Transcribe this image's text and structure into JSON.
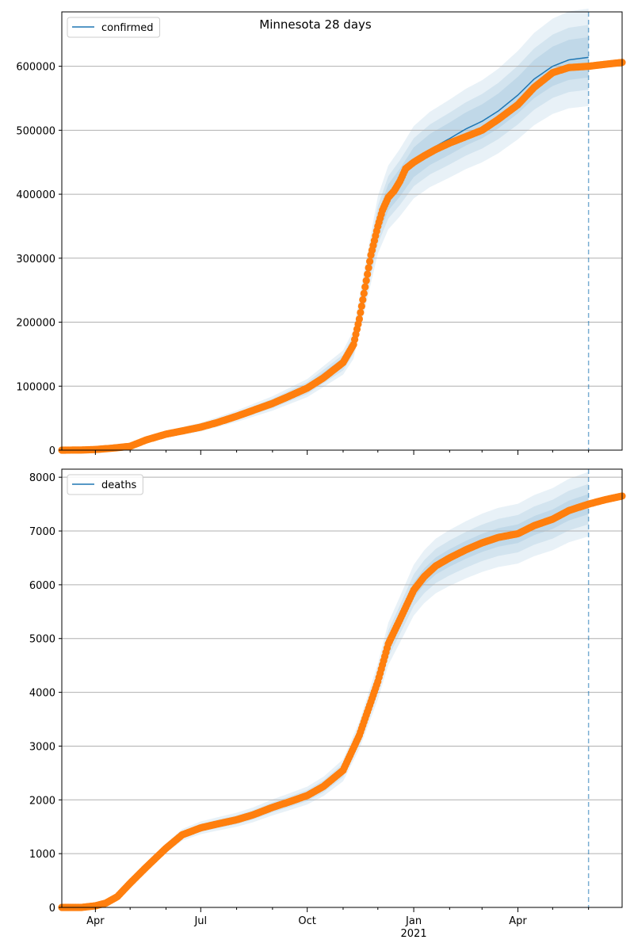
{
  "figure": {
    "title": "Minnesota 28 days"
  },
  "x_axis": {
    "tick_labels": [
      "Apr",
      "Jul",
      "Oct",
      "Jan",
      "Apr"
    ],
    "tick_dates": [
      "2020-04-01",
      "2020-07-01",
      "2020-10-01",
      "2021-01-01",
      "2021-04-01"
    ],
    "year_label": "2021",
    "minor_tick_dates": [
      "2020-05-01",
      "2020-06-01",
      "2020-08-01",
      "2020-09-01",
      "2020-11-01",
      "2020-12-01",
      "2021-02-01",
      "2021-03-01",
      "2021-05-01",
      "2021-06-01"
    ],
    "range": [
      "2020-03-03",
      "2021-06-30"
    ]
  },
  "colors": {
    "observed": "#ff7f0e",
    "forecast": "#1f77b4",
    "band": "#1f77b4",
    "grid": "#b0b0b0"
  },
  "chart_data": [
    {
      "type": "line",
      "legend": "confirmed",
      "legend_position": "top-left",
      "grid": "horizontal",
      "ylim": [
        0,
        685000
      ],
      "yticks": [
        0,
        100000,
        200000,
        300000,
        400000,
        500000,
        600000
      ],
      "forecast_cutoff": "2021-06-01",
      "observed": {
        "x": [
          "2020-03-03",
          "2020-03-20",
          "2020-04-01",
          "2020-04-15",
          "2020-05-01",
          "2020-05-15",
          "2020-06-01",
          "2020-06-15",
          "2020-07-01",
          "2020-07-15",
          "2020-08-01",
          "2020-08-15",
          "2020-09-01",
          "2020-09-15",
          "2020-10-01",
          "2020-10-15",
          "2020-11-01",
          "2020-11-10",
          "2020-11-15",
          "2020-11-20",
          "2020-11-25",
          "2020-12-01",
          "2020-12-05",
          "2020-12-10",
          "2020-12-15",
          "2020-12-20",
          "2020-12-25",
          "2021-01-01",
          "2021-01-10",
          "2021-01-20",
          "2021-02-01",
          "2021-02-15",
          "2021-03-01",
          "2021-03-15",
          "2021-04-01",
          "2021-04-15",
          "2021-05-01",
          "2021-05-15",
          "2021-06-01",
          "2021-06-15",
          "2021-06-30"
        ],
        "y": [
          0,
          200,
          1000,
          3000,
          6000,
          16000,
          25000,
          30000,
          36000,
          43000,
          53000,
          62000,
          73000,
          84000,
          97000,
          113000,
          137000,
          165000,
          205000,
          255000,
          305000,
          350000,
          375000,
          395000,
          405000,
          420000,
          440000,
          450000,
          460000,
          470000,
          480000,
          490000,
          500000,
          517000,
          540000,
          567000,
          590000,
          598000,
          600000,
          603000,
          606000
        ]
      },
      "forecast": {
        "x": [
          "2020-03-03",
          "2020-04-01",
          "2020-05-01",
          "2020-06-01",
          "2020-07-01",
          "2020-08-01",
          "2020-09-01",
          "2020-10-01",
          "2020-11-01",
          "2020-11-10",
          "2020-11-20",
          "2020-12-01",
          "2020-12-10",
          "2020-12-20",
          "2021-01-01",
          "2021-01-15",
          "2021-02-01",
          "2021-02-15",
          "2021-03-01",
          "2021-03-15",
          "2021-04-01",
          "2021-04-15",
          "2021-05-01",
          "2021-05-15",
          "2021-06-01"
        ],
        "y": [
          0,
          1000,
          6000,
          25000,
          36000,
          53000,
          73000,
          97000,
          137000,
          165000,
          255000,
          352000,
          395000,
          418000,
          450000,
          470000,
          487000,
          502000,
          514000,
          530000,
          555000,
          580000,
          600000,
          610000,
          614000
        ],
        "band_halfwidths": [
          {
            "rel": 0.05,
            "abs": 800
          },
          {
            "rel": 0.08,
            "abs": 1500
          },
          {
            "rel": 0.12,
            "abs": 2500
          }
        ]
      }
    },
    {
      "type": "line",
      "legend": "deaths",
      "legend_position": "top-left",
      "grid": "horizontal",
      "ylim": [
        0,
        8150
      ],
      "yticks": [
        0,
        1000,
        2000,
        3000,
        4000,
        5000,
        6000,
        7000,
        8000
      ],
      "forecast_cutoff": "2021-06-01",
      "observed": {
        "x": [
          "2020-03-03",
          "2020-03-20",
          "2020-04-01",
          "2020-04-10",
          "2020-04-20",
          "2020-05-01",
          "2020-05-15",
          "2020-06-01",
          "2020-06-15",
          "2020-07-01",
          "2020-07-15",
          "2020-08-01",
          "2020-08-15",
          "2020-09-01",
          "2020-09-15",
          "2020-10-01",
          "2020-10-15",
          "2020-11-01",
          "2020-11-15",
          "2020-12-01",
          "2020-12-10",
          "2020-12-20",
          "2021-01-01",
          "2021-01-10",
          "2021-01-20",
          "2021-02-01",
          "2021-02-15",
          "2021-03-01",
          "2021-03-15",
          "2021-04-01",
          "2021-04-15",
          "2021-05-01",
          "2021-05-15",
          "2021-06-01",
          "2021-06-15",
          "2021-06-30"
        ],
        "y": [
          0,
          0,
          30,
          80,
          200,
          450,
          750,
          1100,
          1350,
          1480,
          1550,
          1630,
          1720,
          1860,
          1960,
          2080,
          2250,
          2550,
          3200,
          4200,
          4900,
          5350,
          5900,
          6150,
          6350,
          6500,
          6650,
          6780,
          6880,
          6950,
          7100,
          7220,
          7380,
          7500,
          7580,
          7650
        ]
      },
      "forecast": {
        "x": [
          "2020-03-03",
          "2020-04-01",
          "2020-04-20",
          "2020-05-01",
          "2020-05-15",
          "2020-06-01",
          "2020-06-15",
          "2020-07-01",
          "2020-07-15",
          "2020-08-01",
          "2020-08-15",
          "2020-09-01",
          "2020-09-15",
          "2020-10-01",
          "2020-10-15",
          "2020-11-01",
          "2020-11-15",
          "2020-12-01",
          "2020-12-10",
          "2020-12-20",
          "2021-01-01",
          "2021-01-10",
          "2021-01-20",
          "2021-02-01",
          "2021-02-15",
          "2021-03-01",
          "2021-03-15",
          "2021-04-01",
          "2021-04-15",
          "2021-05-01",
          "2021-05-15",
          "2021-06-01"
        ],
        "y": [
          0,
          30,
          200,
          450,
          750,
          1100,
          1350,
          1480,
          1550,
          1630,
          1720,
          1860,
          1960,
          2080,
          2250,
          2550,
          3200,
          4200,
          4900,
          5350,
          5900,
          6150,
          6350,
          6500,
          6650,
          6780,
          6880,
          6950,
          7100,
          7220,
          7380,
          7500
        ],
        "band_halfwidths": [
          {
            "rel": 0.025,
            "abs": 0
          },
          {
            "rel": 0.05,
            "abs": 0
          },
          {
            "rel": 0.08,
            "abs": 0
          }
        ]
      }
    }
  ]
}
